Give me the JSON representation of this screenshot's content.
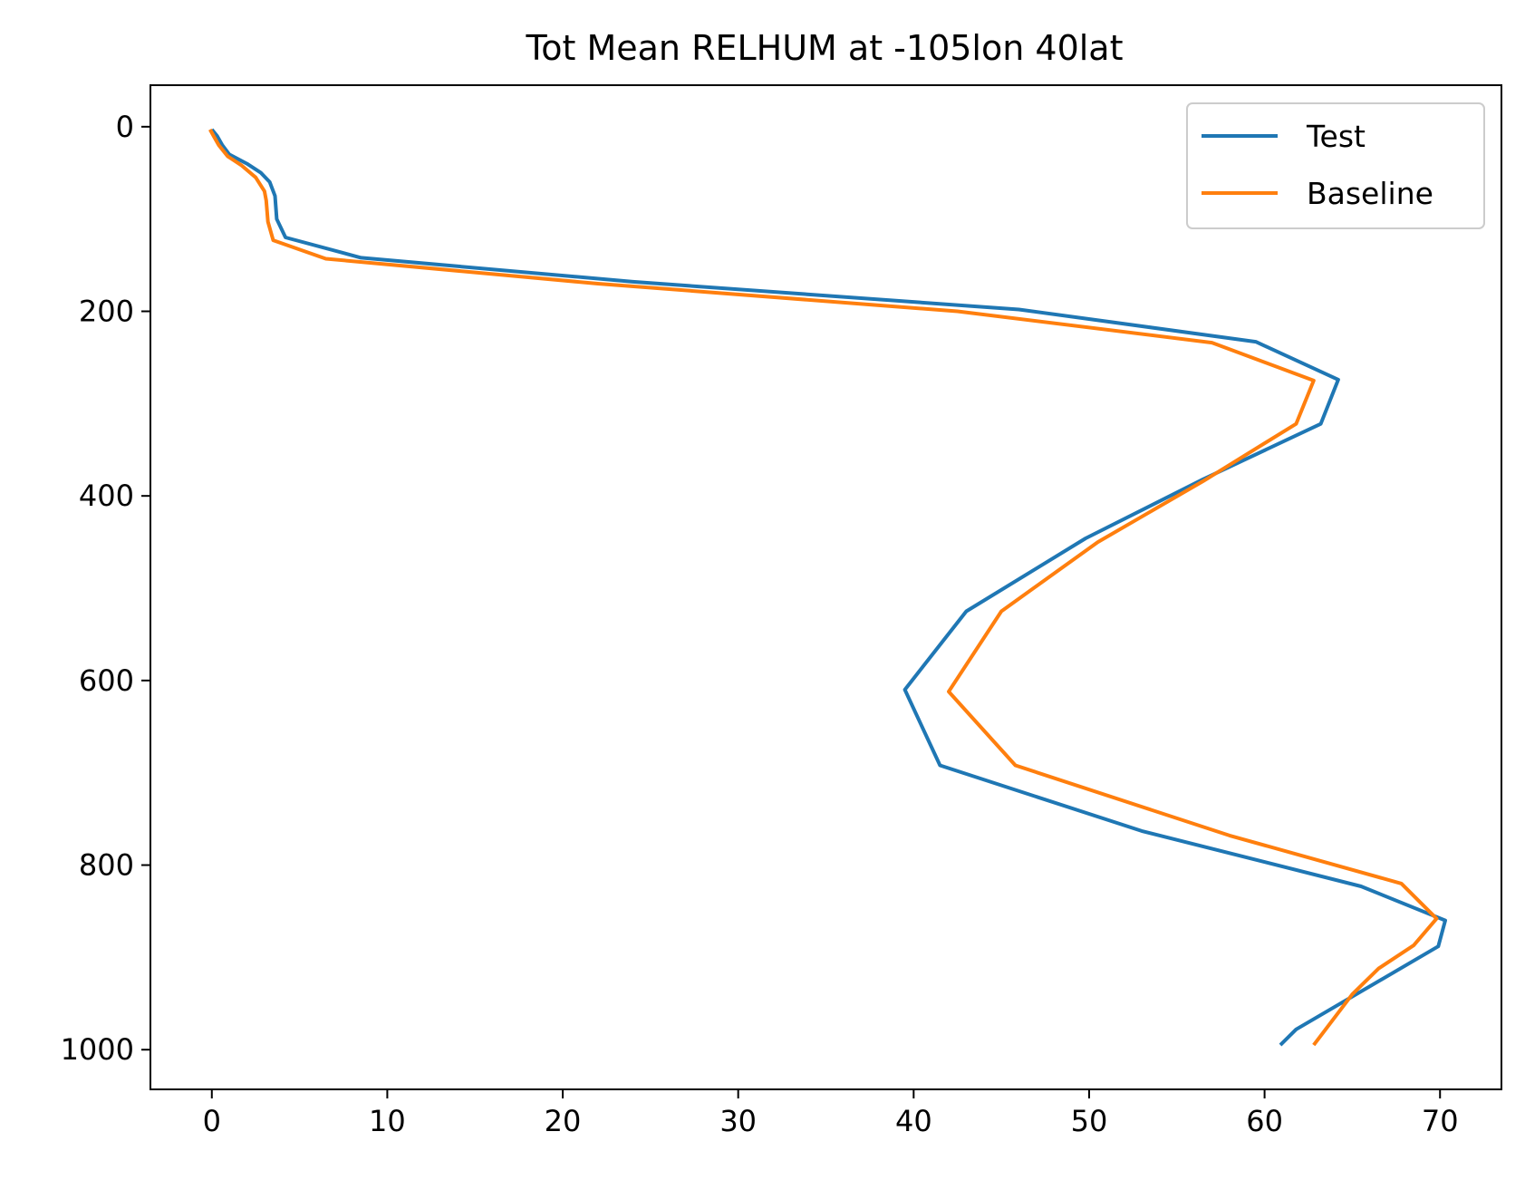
{
  "chart_data": {
    "type": "line",
    "title": "Tot Mean RELHUM at -105lon 40lat",
    "xlabel": "",
    "ylabel": "",
    "xlim": [
      -3.5,
      73.5
    ],
    "ylim": [
      1043,
      -45
    ],
    "y_inverted": true,
    "x_ticks": [
      0,
      10,
      20,
      30,
      40,
      50,
      60,
      70
    ],
    "y_ticks": [
      0,
      200,
      400,
      600,
      800,
      1000
    ],
    "grid": false,
    "legend_position": "top-right",
    "series": [
      {
        "name": "Test",
        "color": "#1f77b4",
        "points": [
          [
            0.0,
            3
          ],
          [
            0.3,
            10
          ],
          [
            0.6,
            20
          ],
          [
            1.0,
            30
          ],
          [
            2.0,
            40
          ],
          [
            2.8,
            50
          ],
          [
            3.3,
            60
          ],
          [
            3.6,
            75
          ],
          [
            3.7,
            100
          ],
          [
            4.2,
            120
          ],
          [
            8.5,
            142
          ],
          [
            24.0,
            168
          ],
          [
            46.0,
            198
          ],
          [
            59.5,
            233
          ],
          [
            64.2,
            274
          ],
          [
            63.2,
            322
          ],
          [
            56.5,
            382
          ],
          [
            49.8,
            446
          ],
          [
            43.0,
            525
          ],
          [
            39.5,
            610
          ],
          [
            41.5,
            692
          ],
          [
            53.0,
            763
          ],
          [
            65.5,
            823
          ],
          [
            70.3,
            860
          ],
          [
            69.9,
            888
          ],
          [
            61.8,
            978
          ],
          [
            60.9,
            995
          ]
        ]
      },
      {
        "name": "Baseline",
        "color": "#ff7f0e",
        "points": [
          [
            -0.1,
            3
          ],
          [
            0.1,
            10
          ],
          [
            0.4,
            20
          ],
          [
            0.9,
            32
          ],
          [
            1.7,
            42
          ],
          [
            2.5,
            55
          ],
          [
            3.0,
            70
          ],
          [
            3.1,
            80
          ],
          [
            3.2,
            103
          ],
          [
            3.5,
            123
          ],
          [
            6.5,
            143
          ],
          [
            22.0,
            170
          ],
          [
            42.5,
            200
          ],
          [
            57.0,
            234
          ],
          [
            62.8,
            275
          ],
          [
            61.8,
            322
          ],
          [
            56.5,
            384
          ],
          [
            50.5,
            450
          ],
          [
            45.0,
            525
          ],
          [
            42.0,
            612
          ],
          [
            45.8,
            692
          ],
          [
            58.0,
            768
          ],
          [
            67.8,
            820
          ],
          [
            69.8,
            858
          ],
          [
            68.5,
            887
          ],
          [
            66.5,
            912
          ],
          [
            65.0,
            940
          ],
          [
            62.8,
            995
          ]
        ]
      }
    ]
  }
}
